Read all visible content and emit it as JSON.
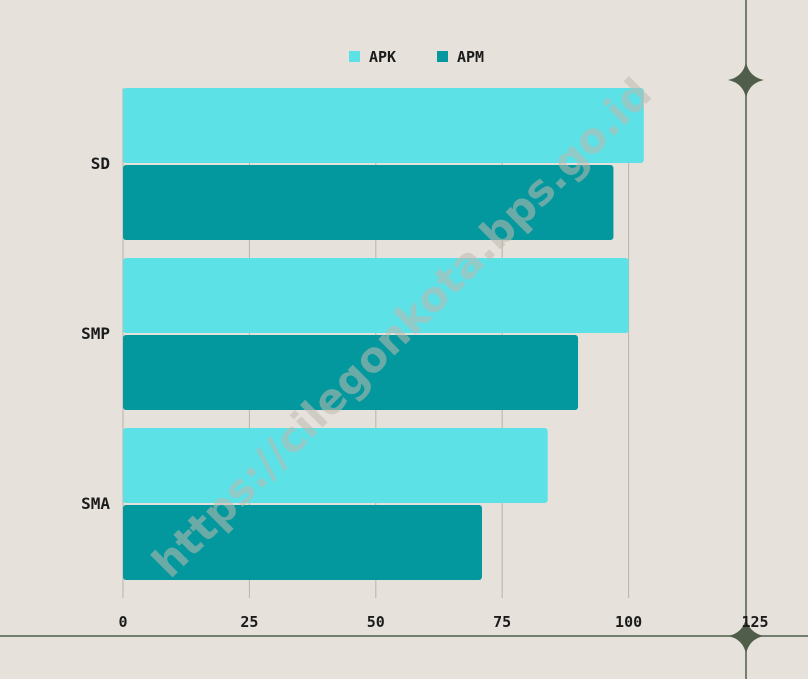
{
  "chart_data": {
    "type": "bar",
    "orientation": "horizontal",
    "categories": [
      "SD",
      "SMP",
      "SMA"
    ],
    "series": [
      {
        "name": "APK",
        "color": "#5ce1e6",
        "values": [
          103,
          100,
          84
        ]
      },
      {
        "name": "APM",
        "color": "#03989e",
        "values": [
          97,
          90,
          71
        ]
      }
    ],
    "xlim": [
      0,
      125
    ],
    "xticks": [
      "0",
      "25",
      "50",
      "75",
      "100",
      "125"
    ],
    "grid": true,
    "legend_position": "top-center"
  },
  "watermark": "https://cilegonkota.bps.go.id",
  "colors": {
    "background": "#e6e2db",
    "gridline": "#b8b4ab",
    "frame": "#4f5d4a"
  }
}
